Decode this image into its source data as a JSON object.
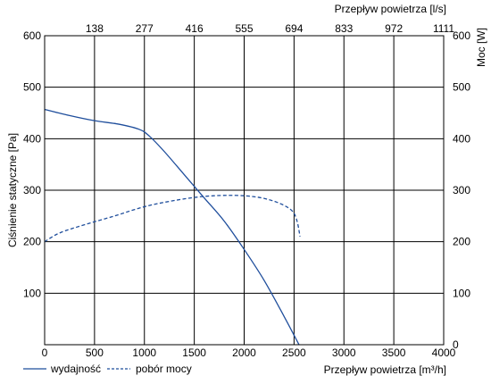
{
  "chart_data": {
    "type": "line",
    "x": {
      "label": "Przepływ powietrza [m³/h]",
      "range": [
        0,
        4000
      ],
      "ticks": [
        0,
        500,
        1000,
        1500,
        2000,
        2500,
        3000,
        3500,
        4000
      ]
    },
    "x_top": {
      "label": "Przepływ powietrza [l/s]",
      "tick_labels": [
        "138",
        "277",
        "416",
        "555",
        "694",
        "833",
        "972",
        "1111"
      ]
    },
    "y_left": {
      "label": "Ciśnienie statyczne [Pa]",
      "range": [
        0,
        600
      ],
      "ticks": [
        100,
        200,
        300,
        400,
        500,
        600
      ]
    },
    "y_right": {
      "label": "Moc [W]",
      "range": [
        0,
        600
      ],
      "ticks": [
        0,
        100,
        200,
        300,
        400,
        500,
        600
      ]
    },
    "grid": true,
    "legend_position": "bottom-left",
    "series": [
      {
        "name": "wydajność",
        "axis": "left",
        "style": "solid",
        "color": "#1f4e9c",
        "points": [
          [
            0,
            457
          ],
          [
            250,
            445
          ],
          [
            500,
            435
          ],
          [
            750,
            428
          ],
          [
            950,
            418
          ],
          [
            1050,
            405
          ],
          [
            1200,
            375
          ],
          [
            1400,
            330
          ],
          [
            1600,
            285
          ],
          [
            1800,
            240
          ],
          [
            2000,
            185
          ],
          [
            2200,
            125
          ],
          [
            2400,
            55
          ],
          [
            2550,
            0
          ]
        ]
      },
      {
        "name": "pobór mocy",
        "axis": "right",
        "style": "dashed",
        "color": "#1f4e9c",
        "points": [
          [
            0,
            200
          ],
          [
            150,
            217
          ],
          [
            400,
            233
          ],
          [
            700,
            250
          ],
          [
            1000,
            268
          ],
          [
            1300,
            280
          ],
          [
            1600,
            288
          ],
          [
            1900,
            290
          ],
          [
            2150,
            286
          ],
          [
            2350,
            275
          ],
          [
            2480,
            260
          ],
          [
            2530,
            240
          ],
          [
            2560,
            210
          ]
        ]
      }
    ]
  }
}
